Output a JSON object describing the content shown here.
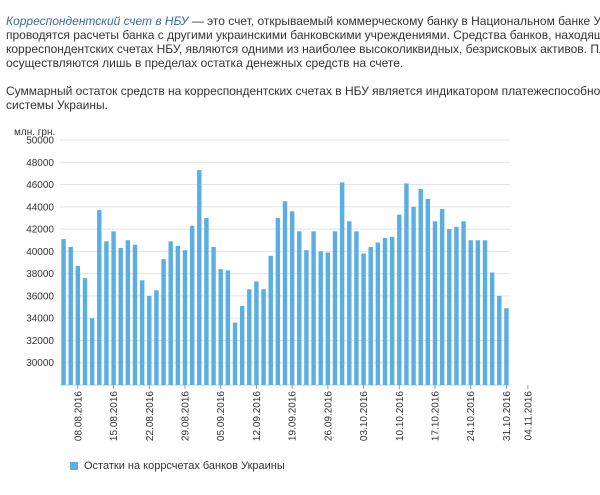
{
  "article": {
    "p1_term": "Корреспондентский счет в НБУ",
    "p1_lines": [
      " — это счет, открываемый коммерческому банку в Национальном банке Украи",
      "проводятся расчеты банка с другими украинскими банковскими учреждениями. Средства банков, находящиес",
      "корреспондентских счетах НБУ, являются одними из наиболее высоколиквидных, безрисковых активов. Плате",
      "осуществляются лишь в пределах остатка денежных средств на счете."
    ],
    "p2_lines": [
      "Суммарный остаток средств на корреспондентских счетах в НБУ является индикатором платежеспособности,",
      "системы Украины."
    ]
  },
  "chart_data": {
    "type": "bar",
    "ylabel": "млн. грн.",
    "ylim": [
      28000,
      50000
    ],
    "yticks": [
      30000,
      32000,
      34000,
      36000,
      38000,
      40000,
      42000,
      44000,
      46000,
      48000,
      50000
    ],
    "x_tick_labels": [
      "08.08.2016",
      "15.08.2016",
      "22.08.2016",
      "29.08.2016",
      "05.09.2016",
      "12.09.2016",
      "19.09.2016",
      "26.09.2016",
      "03.10.2016",
      "10.10.2016",
      "17.10.2016",
      "24.10.2016",
      "31.10.2016",
      "04.11.2016"
    ],
    "x_tick_positions": [
      2,
      7,
      12,
      17,
      22,
      27,
      32,
      37,
      42,
      47,
      52,
      57,
      62,
      65
    ],
    "series": [
      {
        "name": "Остатки на коррсчетах банков Украины",
        "color": "#5aaee3",
        "values": [
          41100,
          40400,
          38700,
          37600,
          34000,
          43700,
          40900,
          41800,
          40300,
          41000,
          40600,
          37400,
          36000,
          36500,
          39300,
          40900,
          40500,
          40100,
          42300,
          47300,
          43000,
          40400,
          38400,
          38300,
          33600,
          35100,
          36600,
          37300,
          36600,
          39600,
          43000,
          44500,
          43600,
          41800,
          40100,
          41800,
          40000,
          39900,
          41800,
          46200,
          42700,
          41800,
          39800,
          40400,
          40800,
          41200,
          41300,
          43300,
          46100,
          44000,
          45600,
          44700,
          42700,
          43800,
          42000,
          42200,
          42700,
          41000,
          41000,
          41000,
          38100,
          36000,
          34900
        ]
      }
    ]
  }
}
